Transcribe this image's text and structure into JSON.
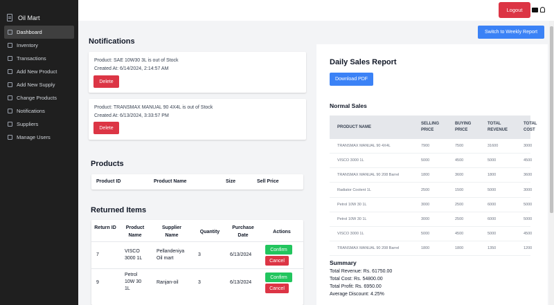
{
  "app": {
    "title": "Oil Mart"
  },
  "sidebar": {
    "items": [
      {
        "label": "Dashboard",
        "icon": "dashboard-icon",
        "active": true
      },
      {
        "label": "Inventory",
        "icon": "inventory-icon"
      },
      {
        "label": "Transactions",
        "icon": "transactions-icon"
      },
      {
        "label": "Add New Product",
        "icon": "box-icon"
      },
      {
        "label": "Add New Supply",
        "icon": "box-icon"
      },
      {
        "label": "Change Products",
        "icon": "box-icon"
      },
      {
        "label": "Notifications",
        "icon": "bell-icon"
      },
      {
        "label": "Suppliers",
        "icon": "users-icon"
      },
      {
        "label": "Manage Users",
        "icon": "users-icon"
      }
    ]
  },
  "topbar": {
    "logout_label": "Logout"
  },
  "switch_label": "Switch to Weekly Report",
  "notifications": {
    "title": "Notifications",
    "items": [
      {
        "message": "Product: SAE 10W30 3L is out of Stock",
        "created": "Created At: 6/14/2024, 2:14:57 AM",
        "delete_label": "Delete"
      },
      {
        "message": "Product: TRANSMAX MANUAL 90 4X4L is out of Stock",
        "created": "Created At: 6/13/2024, 3:33:57 PM",
        "delete_label": "Delete"
      }
    ]
  },
  "products": {
    "title": "Products",
    "columns": [
      "Product ID",
      "Product Name",
      "Size",
      "Sell Price"
    ]
  },
  "returned": {
    "title": "Returned Items",
    "columns": [
      "Return ID",
      "Product Name",
      "Supplier Name",
      "Quantity",
      "Purchase Date",
      "Actions"
    ],
    "rows": [
      {
        "id": "7",
        "product": "VISCO 3000 1L",
        "supplier": "Pellandeniya Oil mart",
        "qty": "3",
        "date": "6/13/2024",
        "confirm": "Confirm",
        "cancel": "Cancel"
      },
      {
        "id": "9",
        "product": "Petrol 10W 30 1L",
        "supplier": "Ranjan-oil",
        "qty": "3",
        "date": "6/13/2024",
        "confirm": "Confirm",
        "cancel": "Cancel"
      }
    ]
  },
  "report": {
    "title": "Daily Sales Report",
    "pdf_label": "Download PDF",
    "normal_sales_title": "Normal Sales",
    "columns": [
      "PRODUCT NAME",
      "SELLING PRICE",
      "BUYING PRICE",
      "TOTAL REVENUE",
      "TOTAL COST"
    ],
    "rows": [
      [
        "TRANSMAX MANUAL 90 4X4L",
        "7900",
        "7500",
        "31600",
        "3000"
      ],
      [
        "VISCO 3000 1L",
        "5000",
        "4500",
        "5000",
        "4500"
      ],
      [
        "TRANSMAX MANUAL 90 208 Barrel",
        "1800",
        "3600",
        "1800",
        "3600"
      ],
      [
        "Radiator Coolent 1L",
        "2500",
        "1500",
        "5000",
        "3000"
      ],
      [
        "Petrol 10W 30 1L",
        "3000",
        "2500",
        "6000",
        "5000"
      ],
      [
        "Petrol 10W 30 1L",
        "3000",
        "2500",
        "6000",
        "5000"
      ],
      [
        "VISCO 3000 1L",
        "5000",
        "4500",
        "5000",
        "4500"
      ],
      [
        "TRANSMAX MANUAL 90 208 Barrel",
        "1800",
        "1800",
        "1350",
        "1200"
      ]
    ],
    "summary_title": "Summary",
    "summary": [
      "Total Revenue: Rs. 61750.00",
      "Total Cost: Rs. 54800.00",
      "Total Profit: Rs. 6950.00",
      "Average Discount: 4.25%"
    ]
  }
}
